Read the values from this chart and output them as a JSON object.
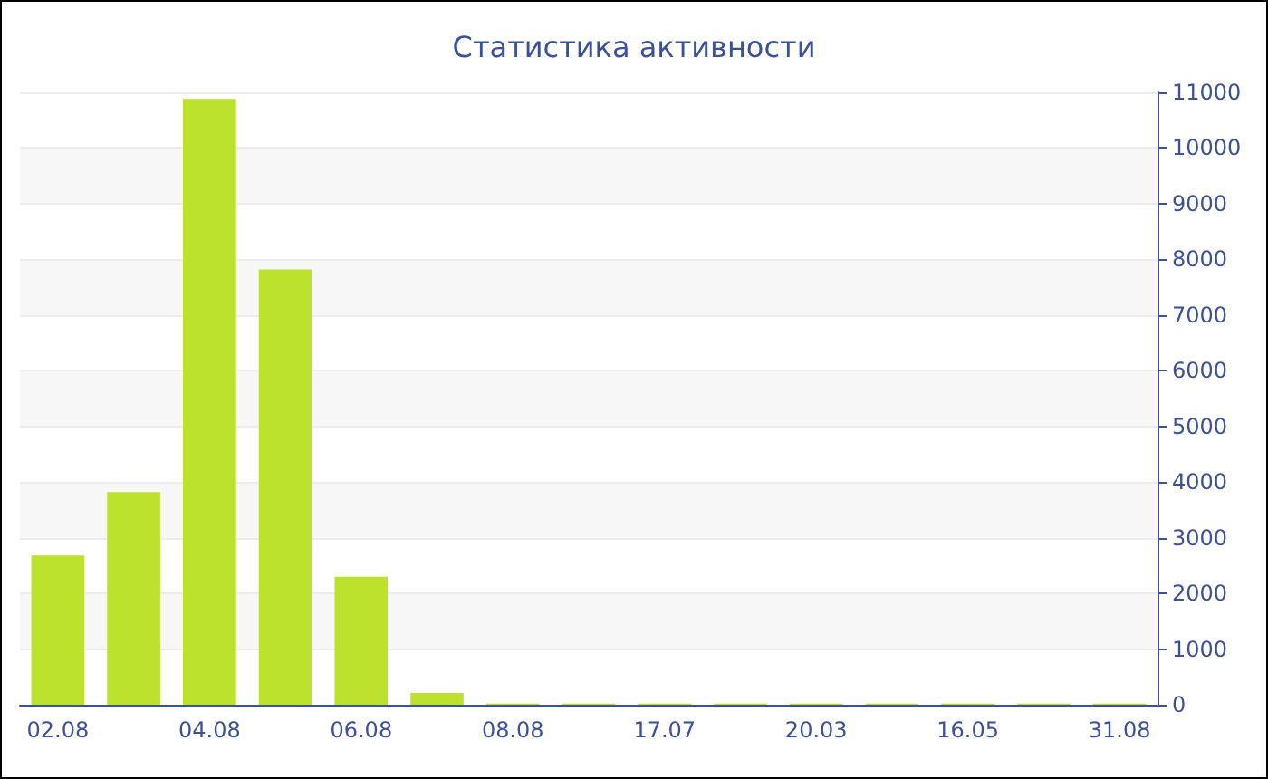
{
  "chart_data": {
    "type": "bar",
    "title": "Статистика активности",
    "categories": [
      "02.08",
      null,
      "04.08",
      null,
      "06.08",
      null,
      "08.08",
      null,
      "17.07",
      null,
      "20.03",
      null,
      "16.05",
      null,
      "31.08"
    ],
    "values": [
      2680,
      3820,
      10880,
      7820,
      2300,
      210,
      20,
      20,
      20,
      20,
      20,
      20,
      20,
      20,
      20
    ],
    "color": "#bce22e",
    "ylim": [
      0,
      11000
    ],
    "yticks": [
      0,
      1000,
      2000,
      3000,
      4000,
      5000,
      6000,
      7000,
      8000,
      9000,
      10000,
      11000
    ],
    "grid": "y"
  }
}
